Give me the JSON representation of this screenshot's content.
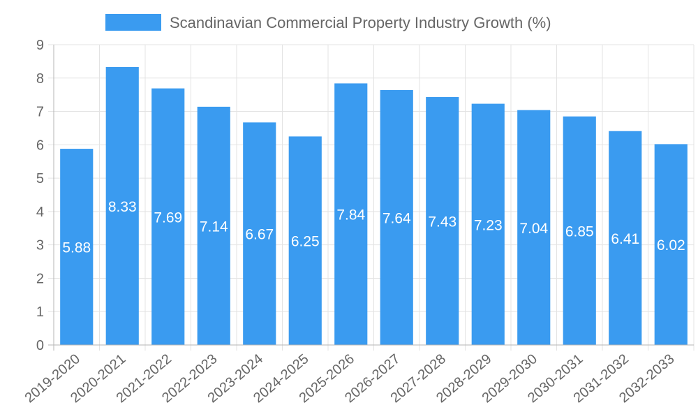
{
  "chart_data": {
    "type": "bar",
    "title": "",
    "xlabel": "",
    "ylabel": "",
    "legend": [
      "Scandinavian Commercial Property Industry Growth (%)"
    ],
    "legend_position": "top",
    "categories": [
      "2019-2020",
      "2020-2021",
      "2021-2022",
      "2022-2023",
      "2023-2024",
      "2024-2025",
      "2025-2026",
      "2026-2027",
      "2027-2028",
      "2028-2029",
      "2029-2030",
      "2030-2031",
      "2031-2032",
      "2032-2033"
    ],
    "series": [
      {
        "name": "Scandinavian Commercial Property Industry Growth (%)",
        "values": [
          5.88,
          8.33,
          7.69,
          7.14,
          6.67,
          6.25,
          7.84,
          7.64,
          7.43,
          7.23,
          7.04,
          6.85,
          6.41,
          6.02
        ],
        "data_labels": [
          "5.88",
          "8.33",
          "7.69",
          "7.14",
          "6.67",
          "6.25",
          "7.84",
          "7.64",
          "7.43",
          "7.23",
          "7.04",
          "6.85",
          "6.41",
          "6.02"
        ]
      }
    ],
    "ylim": [
      0,
      9
    ],
    "yticks": [
      "0",
      "1",
      "2",
      "3",
      "4",
      "5",
      "6",
      "7",
      "8",
      "9"
    ],
    "grid": true,
    "colors": {
      "bar": "#3a9bf0",
      "grid": "#e3e3e3",
      "axis": "#b5b5b5",
      "text": "#666666",
      "data_label": "#ffffff"
    }
  }
}
